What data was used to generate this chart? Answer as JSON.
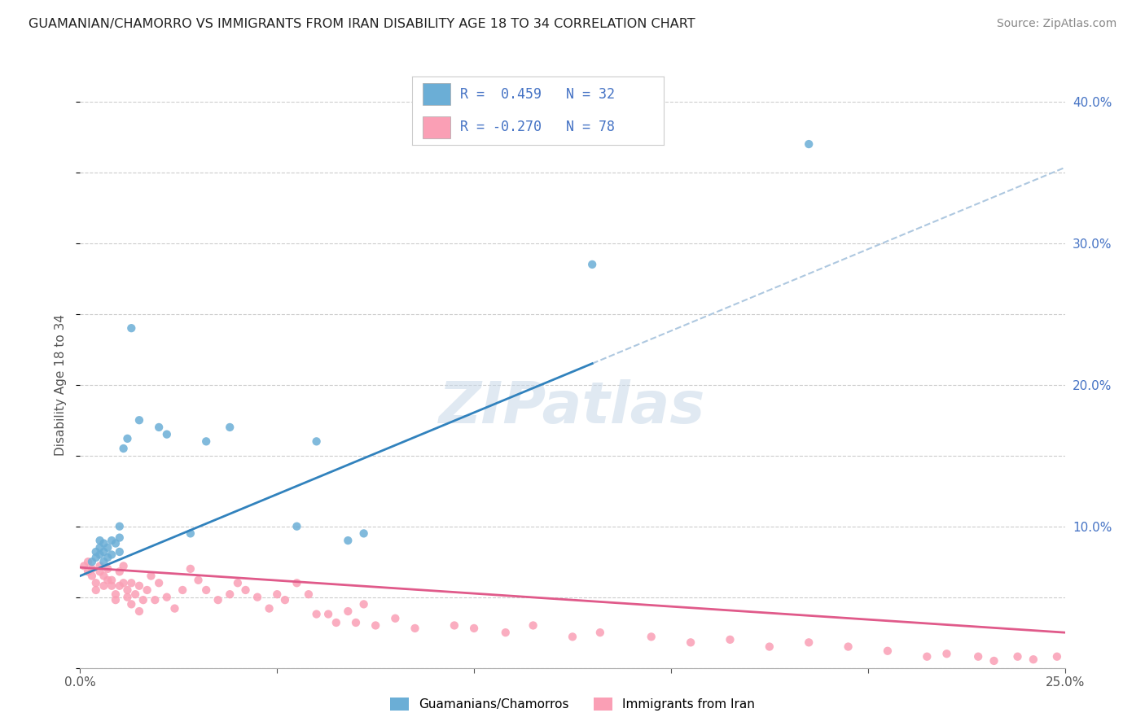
{
  "title": "GUAMANIAN/CHAMORRO VS IMMIGRANTS FROM IRAN DISABILITY AGE 18 TO 34 CORRELATION CHART",
  "source": "Source: ZipAtlas.com",
  "ylabel": "Disability Age 18 to 34",
  "xmin": 0.0,
  "xmax": 0.25,
  "ymin": 0.0,
  "ymax": 0.4,
  "xticks": [
    0.0,
    0.05,
    0.1,
    0.15,
    0.2,
    0.25
  ],
  "xtick_labels": [
    "0.0%",
    "",
    "",
    "",
    "",
    "25.0%"
  ],
  "yticks": [
    0.0,
    0.1,
    0.2,
    0.3,
    0.4
  ],
  "ytick_labels_right": [
    "",
    "10.0%",
    "20.0%",
    "30.0%",
    "40.0%"
  ],
  "color_blue": "#6baed6",
  "color_pink": "#fa9fb5",
  "color_blue_line": "#3182bd",
  "color_pink_line": "#e05a8a",
  "color_blue_dashed": "#aec8e0",
  "watermark": "ZIPatlas",
  "legend_label_blue": "Guamanians/Chamorros",
  "legend_label_pink": "Immigrants from Iran",
  "blue_line_x0": 0.0,
  "blue_line_y0": 0.065,
  "blue_line_x1": 0.13,
  "blue_line_y1": 0.215,
  "pink_line_x0": 0.0,
  "pink_line_y0": 0.071,
  "pink_line_x1": 0.25,
  "pink_line_y1": 0.025,
  "blue_x": [
    0.003,
    0.004,
    0.004,
    0.005,
    0.005,
    0.005,
    0.006,
    0.006,
    0.006,
    0.007,
    0.007,
    0.008,
    0.008,
    0.009,
    0.01,
    0.01,
    0.01,
    0.011,
    0.012,
    0.013,
    0.015,
    0.02,
    0.022,
    0.028,
    0.032,
    0.038,
    0.055,
    0.06,
    0.068,
    0.072,
    0.13,
    0.185
  ],
  "blue_y": [
    0.075,
    0.078,
    0.082,
    0.08,
    0.085,
    0.09,
    0.075,
    0.082,
    0.088,
    0.078,
    0.085,
    0.08,
    0.09,
    0.088,
    0.082,
    0.092,
    0.1,
    0.155,
    0.162,
    0.24,
    0.175,
    0.17,
    0.165,
    0.095,
    0.16,
    0.17,
    0.1,
    0.16,
    0.09,
    0.095,
    0.285,
    0.37
  ],
  "pink_x": [
    0.001,
    0.002,
    0.002,
    0.003,
    0.003,
    0.004,
    0.004,
    0.005,
    0.005,
    0.006,
    0.006,
    0.007,
    0.007,
    0.008,
    0.008,
    0.009,
    0.009,
    0.01,
    0.01,
    0.011,
    0.011,
    0.012,
    0.012,
    0.013,
    0.013,
    0.014,
    0.015,
    0.015,
    0.016,
    0.017,
    0.018,
    0.019,
    0.02,
    0.022,
    0.024,
    0.026,
    0.028,
    0.03,
    0.032,
    0.035,
    0.038,
    0.04,
    0.042,
    0.045,
    0.048,
    0.05,
    0.052,
    0.055,
    0.058,
    0.06,
    0.063,
    0.065,
    0.068,
    0.07,
    0.072,
    0.075,
    0.08,
    0.085,
    0.095,
    0.1,
    0.108,
    0.115,
    0.125,
    0.132,
    0.145,
    0.155,
    0.165,
    0.175,
    0.185,
    0.195,
    0.205,
    0.215,
    0.22,
    0.228,
    0.232,
    0.238,
    0.242,
    0.248
  ],
  "pink_y": [
    0.072,
    0.068,
    0.075,
    0.07,
    0.065,
    0.055,
    0.06,
    0.068,
    0.072,
    0.058,
    0.065,
    0.062,
    0.07,
    0.058,
    0.062,
    0.048,
    0.052,
    0.058,
    0.068,
    0.06,
    0.072,
    0.05,
    0.055,
    0.045,
    0.06,
    0.052,
    0.04,
    0.058,
    0.048,
    0.055,
    0.065,
    0.048,
    0.06,
    0.05,
    0.042,
    0.055,
    0.07,
    0.062,
    0.055,
    0.048,
    0.052,
    0.06,
    0.055,
    0.05,
    0.042,
    0.052,
    0.048,
    0.06,
    0.052,
    0.038,
    0.038,
    0.032,
    0.04,
    0.032,
    0.045,
    0.03,
    0.035,
    0.028,
    0.03,
    0.028,
    0.025,
    0.03,
    0.022,
    0.025,
    0.022,
    0.018,
    0.02,
    0.015,
    0.018,
    0.015,
    0.012,
    0.008,
    0.01,
    0.008,
    0.005,
    0.008,
    0.006,
    0.008
  ]
}
